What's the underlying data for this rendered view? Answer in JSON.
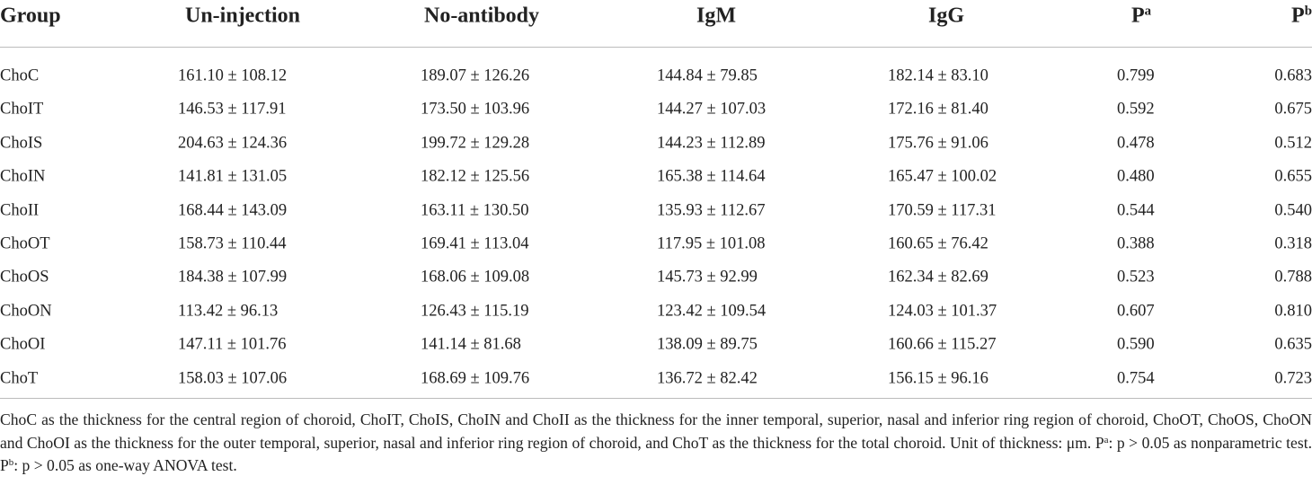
{
  "table": {
    "header": [
      "Group",
      "Un-injection",
      "No-antibody",
      "IgM",
      "IgG",
      {
        "text": "P",
        "sup": "a"
      },
      {
        "text": "P",
        "sup": "b"
      }
    ],
    "rows": [
      [
        "ChoC",
        "161.10 ± 108.12",
        "189.07 ± 126.26",
        "144.84 ± 79.85",
        "182.14 ± 83.10",
        "0.799",
        "0.683"
      ],
      [
        "ChoIT",
        "146.53 ± 117.91",
        "173.50 ± 103.96",
        "144.27 ± 107.03",
        "172.16 ± 81.40",
        "0.592",
        "0.675"
      ],
      [
        "ChoIS",
        "204.63 ± 124.36",
        "199.72 ± 129.28",
        "144.23 ± 112.89",
        "175.76 ± 91.06",
        "0.478",
        "0.512"
      ],
      [
        "ChoIN",
        "141.81 ± 131.05",
        "182.12 ± 125.56",
        "165.38 ± 114.64",
        "165.47 ± 100.02",
        "0.480",
        "0.655"
      ],
      [
        "ChoII",
        "168.44 ± 143.09",
        "163.11 ± 130.50",
        "135.93 ± 112.67",
        "170.59 ± 117.31",
        "0.544",
        "0.540"
      ],
      [
        "ChoOT",
        "158.73 ± 110.44",
        "169.41 ± 113.04",
        "117.95 ± 101.08",
        "160.65 ± 76.42",
        "0.388",
        "0.318"
      ],
      [
        "ChoOS",
        "184.38 ± 107.99",
        "168.06 ± 109.08",
        "145.73 ± 92.99",
        "162.34 ± 82.69",
        "0.523",
        "0.788"
      ],
      [
        "ChoON",
        "113.42 ± 96.13",
        "126.43 ± 115.19",
        "123.42 ± 109.54",
        "124.03 ± 101.37",
        "0.607",
        "0.810"
      ],
      [
        "ChoOI",
        "147.11 ± 101.76",
        "141.14 ± 81.68",
        "138.09 ± 89.75",
        "160.66 ± 115.27",
        "0.590",
        "0.635"
      ],
      [
        "ChoT",
        "158.03 ± 107.06",
        "168.69 ± 109.76",
        "136.72 ± 82.42",
        "156.15 ± 96.16",
        "0.754",
        "0.723"
      ]
    ],
    "footnote": {
      "text": "ChoC as the thickness for the central region of choroid, ChoIT, ChoIS, ChoIN and ChoII as the thickness for the inner temporal, superior, nasal and inferior ring region of choroid, ChoOT, ChoOS, ChoON and ChoOI as the thickness for the outer temporal, superior, nasal and inferior ring region of choroid, and ChoT as the thickness for the total choroid. Unit of thickness: μm.",
      "notes": [
        {
          "symbol": "P",
          "sup": "a",
          "text": ": p > 0.05 as nonparametric test."
        },
        {
          "symbol": "P",
          "sup": "b",
          "text": ": p > 0.05 as one-way ANOVA test."
        }
      ]
    }
  }
}
